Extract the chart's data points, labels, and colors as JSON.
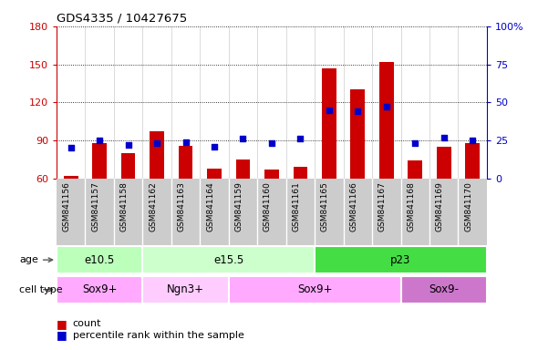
{
  "title": "GDS4335 / 10427675",
  "samples": [
    "GSM841156",
    "GSM841157",
    "GSM841158",
    "GSM841162",
    "GSM841163",
    "GSM841164",
    "GSM841159",
    "GSM841160",
    "GSM841161",
    "GSM841165",
    "GSM841166",
    "GSM841167",
    "GSM841168",
    "GSM841169",
    "GSM841170"
  ],
  "counts": [
    62,
    88,
    80,
    97,
    86,
    68,
    75,
    67,
    69,
    147,
    130,
    152,
    74,
    85,
    88
  ],
  "pct_rank": [
    20,
    25,
    22,
    23,
    24,
    21,
    26,
    23,
    26,
    45,
    44,
    47,
    23,
    27,
    25
  ],
  "ylim_left": [
    60,
    180
  ],
  "ylim_right": [
    0,
    100
  ],
  "yticks_left": [
    60,
    90,
    120,
    150,
    180
  ],
  "yticks_right": [
    0,
    25,
    50,
    75,
    100
  ],
  "ytick_labels_right": [
    "0",
    "25",
    "50",
    "75",
    "100%"
  ],
  "bar_color": "#cc0000",
  "dot_color": "#0000cc",
  "axis_color_left": "#cc0000",
  "axis_color_right": "#0000cc",
  "age_groups": [
    {
      "label": "e10.5",
      "start": 0,
      "end": 3,
      "color": "#bbffbb"
    },
    {
      "label": "e15.5",
      "start": 3,
      "end": 9,
      "color": "#ccffcc"
    },
    {
      "label": "p23",
      "start": 9,
      "end": 15,
      "color": "#44dd44"
    }
  ],
  "cell_groups": [
    {
      "label": "Sox9+",
      "start": 0,
      "end": 3,
      "color": "#ffaaff"
    },
    {
      "label": "Ngn3+",
      "start": 3,
      "end": 6,
      "color": "#ffccff"
    },
    {
      "label": "Sox9+",
      "start": 6,
      "end": 12,
      "color": "#ffaaff"
    },
    {
      "label": "Sox9-",
      "start": 12,
      "end": 15,
      "color": "#cc77cc"
    }
  ],
  "bg_color": "#ffffff",
  "xlabel_age": "age",
  "xlabel_cell": "cell type",
  "legend_count": "count",
  "legend_pct": "percentile rank within the sample"
}
